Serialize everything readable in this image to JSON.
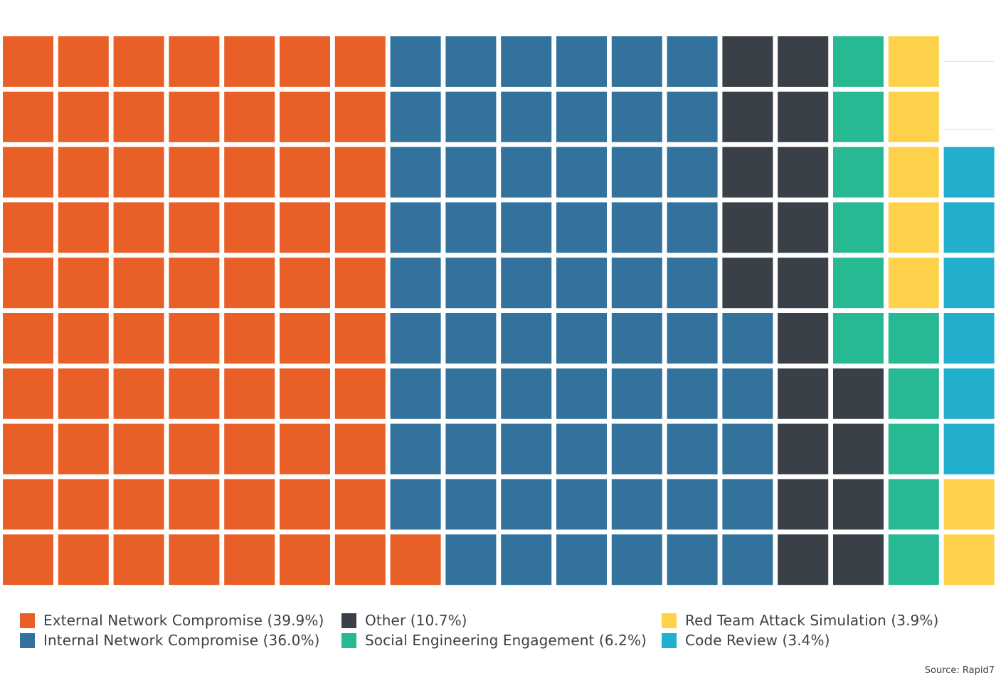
{
  "chart_data": {
    "type": "waffle",
    "rows": 10,
    "columns": 18,
    "series": [
      {
        "name": "External Network Compromise",
        "label": "External Network Compromise (39.9%)",
        "value": 39.9,
        "color": "#E85F28"
      },
      {
        "name": "Internal Network Compromise",
        "label": "Internal Network Compromise (36.0%)",
        "value": 36.0,
        "color": "#32729C"
      },
      {
        "name": "Other",
        "label": "Other (10.7%)",
        "value": 10.7,
        "color": "#3A4048"
      },
      {
        "name": "Social Engineering Engagement",
        "label": "Social Engineering Engagement (6.2%)",
        "value": 6.2,
        "color": "#27B894"
      },
      {
        "name": "Red Team Attack Simulation",
        "label": "Red Team Attack Simulation (3.9%)",
        "value": 3.9,
        "color": "#FDD14A"
      },
      {
        "name": "Code Review",
        "label": "Code Review (3.4%)",
        "value": 3.4,
        "color": "#22AFCD"
      }
    ],
    "cells_by_column": [
      [
        0,
        0,
        0,
        0,
        0,
        0,
        0,
        0,
        0,
        0
      ],
      [
        0,
        0,
        0,
        0,
        0,
        0,
        0,
        0,
        0,
        0
      ],
      [
        0,
        0,
        0,
        0,
        0,
        0,
        0,
        0,
        0,
        0
      ],
      [
        0,
        0,
        0,
        0,
        0,
        0,
        0,
        0,
        0,
        0
      ],
      [
        0,
        0,
        0,
        0,
        0,
        0,
        0,
        0,
        0,
        0
      ],
      [
        0,
        0,
        0,
        0,
        0,
        0,
        0,
        0,
        0,
        0
      ],
      [
        0,
        0,
        0,
        0,
        0,
        0,
        0,
        0,
        0,
        0
      ],
      [
        1,
        1,
        1,
        1,
        1,
        1,
        1,
        1,
        1,
        0
      ],
      [
        1,
        1,
        1,
        1,
        1,
        1,
        1,
        1,
        1,
        1
      ],
      [
        1,
        1,
        1,
        1,
        1,
        1,
        1,
        1,
        1,
        1
      ],
      [
        1,
        1,
        1,
        1,
        1,
        1,
        1,
        1,
        1,
        1
      ],
      [
        1,
        1,
        1,
        1,
        1,
        1,
        1,
        1,
        1,
        1
      ],
      [
        1,
        1,
        1,
        1,
        1,
        1,
        1,
        1,
        1,
        1
      ],
      [
        2,
        2,
        2,
        2,
        2,
        1,
        1,
        1,
        1,
        1
      ],
      [
        2,
        2,
        2,
        2,
        2,
        2,
        2,
        2,
        2,
        2
      ],
      [
        3,
        3,
        3,
        3,
        3,
        3,
        2,
        2,
        2,
        2
      ],
      [
        4,
        4,
        4,
        4,
        4,
        3,
        3,
        3,
        3,
        3
      ],
      [
        null,
        null,
        5,
        5,
        5,
        5,
        5,
        5,
        4,
        4
      ]
    ],
    "legend_position": "bottom",
    "source": "Source: Rapid7"
  }
}
